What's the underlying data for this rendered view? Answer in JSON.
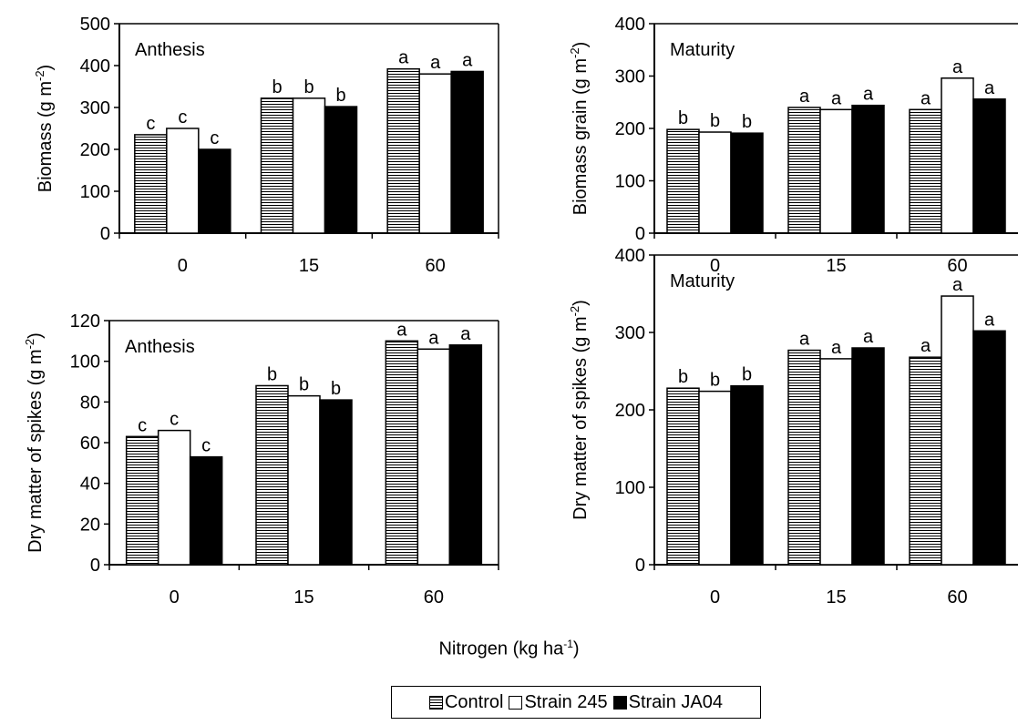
{
  "global_xlabel": {
    "text": "Nitrogen (kg ha",
    "sup": "-1",
    "suffix": ")"
  },
  "legend": [
    {
      "label": "Control",
      "style": "hatch"
    },
    {
      "label": "Strain 245",
      "style": "white"
    },
    {
      "label": "Strain JA04",
      "style": "black"
    }
  ],
  "colors": {
    "hatch_line": "#000000",
    "white_fill": "#ffffff",
    "black_fill": "#000000",
    "axis": "#000000"
  },
  "chart_data": [
    {
      "type": "bar",
      "panel": "top-left",
      "annotation": "Anthesis",
      "ylabel": "Biomass (g m",
      "ylabel_sup": "-2",
      "ylabel_suffix": ")",
      "categories": [
        "0",
        "15",
        "60"
      ],
      "ylim": [
        0,
        500
      ],
      "yticks": [
        "0",
        "100",
        "200",
        "300",
        "400",
        "500"
      ],
      "series": [
        {
          "name": "Control",
          "values": [
            235,
            322,
            392
          ],
          "letters": [
            "c",
            "b",
            "a"
          ]
        },
        {
          "name": "Strain 245",
          "values": [
            250,
            322,
            380
          ],
          "letters": [
            "c",
            "b",
            "a"
          ]
        },
        {
          "name": "Strain JA04",
          "values": [
            200,
            302,
            386
          ],
          "letters": [
            "c",
            "b",
            "a"
          ]
        }
      ]
    },
    {
      "type": "bar",
      "panel": "top-right",
      "annotation": "Maturity",
      "ylabel": "Biomass grain (g m",
      "ylabel_sup": "-2",
      "ylabel_suffix": ")",
      "categories": [
        "0",
        "15",
        "60"
      ],
      "ylim": [
        0,
        400
      ],
      "yticks": [
        "0",
        "100",
        "200",
        "300",
        "400"
      ],
      "series": [
        {
          "name": "Control",
          "values": [
            198,
            240,
            236
          ],
          "letters": [
            "b",
            "a",
            "a"
          ]
        },
        {
          "name": "Strain 245",
          "values": [
            193,
            236,
            296
          ],
          "letters": [
            "b",
            "a",
            "a"
          ]
        },
        {
          "name": "Strain JA04",
          "values": [
            191,
            244,
            256
          ],
          "letters": [
            "b",
            "a",
            "a"
          ]
        }
      ]
    },
    {
      "type": "bar",
      "panel": "bottom-left",
      "annotation": "Anthesis",
      "ylabel": "Dry matter of spikes (g m",
      "ylabel_sup": "-2",
      "ylabel_suffix": ")",
      "categories": [
        "0",
        "15",
        "60"
      ],
      "ylim": [
        0,
        120
      ],
      "yticks": [
        "0",
        "20",
        "40",
        "60",
        "80",
        "100",
        "120"
      ],
      "series": [
        {
          "name": "Control",
          "values": [
            63,
            88,
            110
          ],
          "letters": [
            "c",
            "b",
            "a"
          ]
        },
        {
          "name": "Strain 245",
          "values": [
            66,
            83,
            106
          ],
          "letters": [
            "c",
            "b",
            "a"
          ]
        },
        {
          "name": "Strain JA04",
          "values": [
            53,
            81,
            108
          ],
          "letters": [
            "c",
            "b",
            "a"
          ]
        }
      ]
    },
    {
      "type": "bar",
      "panel": "bottom-right",
      "annotation": "Maturity",
      "ylabel": "Dry matter of spikes (g m",
      "ylabel_sup": "-2",
      "ylabel_suffix": ")",
      "categories": [
        "0",
        "15",
        "60"
      ],
      "ylim": [
        0,
        400
      ],
      "yticks": [
        "0",
        "100",
        "200",
        "300",
        "400"
      ],
      "series": [
        {
          "name": "Control",
          "values": [
            228,
            277,
            268
          ],
          "letters": [
            "b",
            "a",
            "a"
          ]
        },
        {
          "name": "Strain 245",
          "values": [
            224,
            266,
            347
          ],
          "letters": [
            "b",
            "a",
            "a"
          ]
        },
        {
          "name": "Strain JA04",
          "values": [
            231,
            280,
            302
          ],
          "letters": [
            "b",
            "a",
            "a"
          ]
        }
      ]
    }
  ]
}
